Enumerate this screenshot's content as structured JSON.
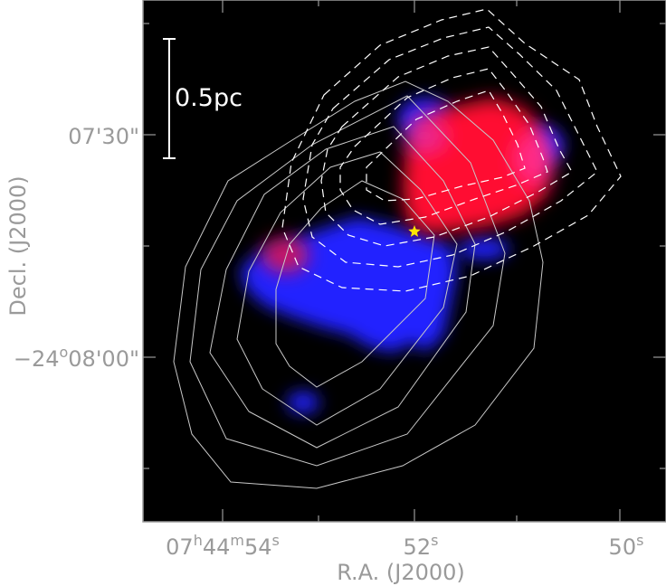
{
  "scale_bar": {
    "label": "0.5pc"
  },
  "axes": {
    "ylabel": "Decl. (J2000)",
    "xlabel": "R.A. (J2000)",
    "y_ticks": [
      {
        "text": "07'30\""
      },
      {
        "text": "−24",
        "sup": "o",
        "rest": "08'00\""
      }
    ],
    "x_ticks": [
      {
        "parts": [
          [
            "07",
            ""
          ],
          [
            "h",
            "sup"
          ],
          [
            "44",
            ""
          ],
          [
            "m",
            "sup"
          ],
          [
            "54",
            ""
          ],
          [
            "s",
            "sup"
          ]
        ]
      },
      {
        "parts": [
          [
            "52",
            ""
          ],
          [
            "s",
            "sup"
          ]
        ]
      },
      {
        "parts": [
          [
            "50",
            ""
          ],
          [
            "s",
            "sup"
          ]
        ]
      }
    ]
  },
  "colors": {
    "background": "#000000",
    "frame": "#9a9a9a",
    "solid_contours": "#c8c8c8",
    "dashed_contours": "#ffffff",
    "redshifted_emission": "#ff1030",
    "blueshifted_emission": "#2323ff",
    "source_marker": "#ffe600"
  },
  "marker": {
    "icon": "star-icon"
  }
}
